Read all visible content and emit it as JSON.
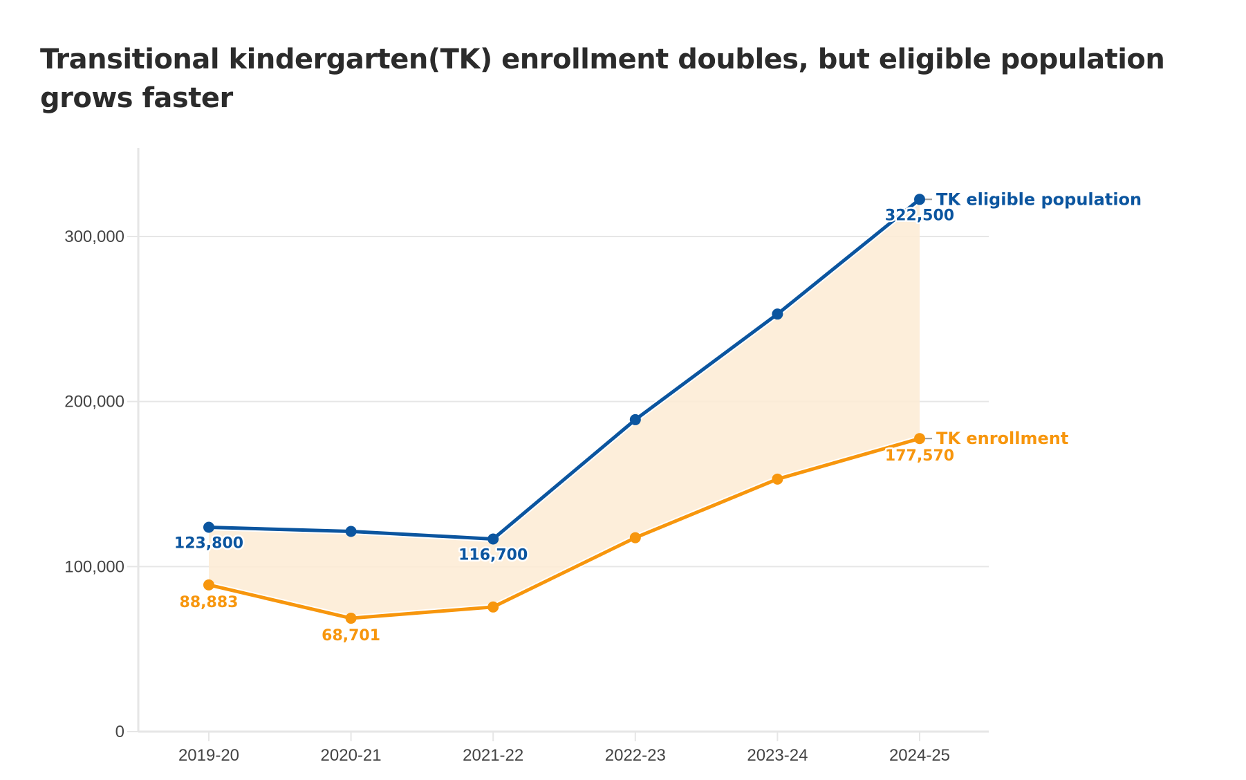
{
  "chart_data": {
    "type": "line",
    "title": "Transitional kindergarten(TK) enrollment doubles, but eligible population grows faster",
    "xlabel": "",
    "ylabel": "",
    "categories": [
      "2019-20",
      "2020-21",
      "2021-22",
      "2022-23",
      "2023-24",
      "2024-25"
    ],
    "ylim": [
      0,
      350000
    ],
    "yticks": [
      0,
      100000,
      200000,
      300000
    ],
    "ytick_labels": [
      "0",
      "100,000",
      "200,000",
      "300,000"
    ],
    "grid": true,
    "legend_placement": "right (end-of-line labels)",
    "shaded_area_between_series": true,
    "series": [
      {
        "name": "TK eligible population",
        "color": "#0b559f",
        "values": [
          123800,
          121300,
          116700,
          189000,
          253000,
          322500
        ],
        "data_labels": [
          "123,800",
          null,
          "116,700",
          null,
          null,
          "322,500"
        ]
      },
      {
        "name": "TK enrollment",
        "color": "#f7960d",
        "values": [
          88883,
          68701,
          75500,
          117500,
          153000,
          177570
        ],
        "data_labels": [
          "88,883",
          "68,701",
          null,
          null,
          null,
          "177,570"
        ]
      }
    ],
    "fill_color": "#fdebd3"
  }
}
